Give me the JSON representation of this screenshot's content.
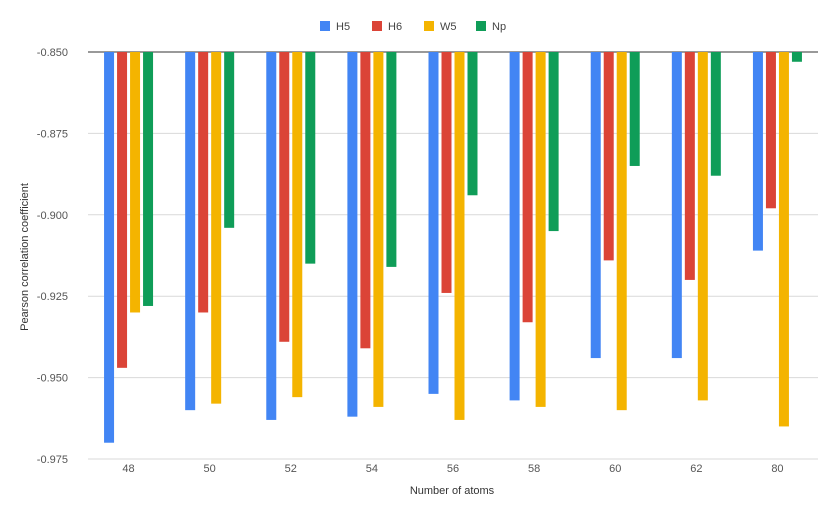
{
  "chart_data": {
    "type": "bar",
    "title": "",
    "xlabel": "Number of atoms",
    "ylabel": "Pearson correlation coefficient",
    "categories": [
      "48",
      "50",
      "52",
      "54",
      "56",
      "58",
      "60",
      "62",
      "80"
    ],
    "ylim": [
      -0.975,
      -0.85
    ],
    "yticks": [
      -0.85,
      -0.875,
      -0.9,
      -0.925,
      -0.95,
      -0.975
    ],
    "ytick_labels": [
      "-0.850",
      "-0.875",
      "-0.900",
      "-0.925",
      "-0.950",
      "-0.975"
    ],
    "grid": true,
    "legend_position": "top-center",
    "series": [
      {
        "name": "H5",
        "color": "#4285F4",
        "values": [
          -0.97,
          -0.96,
          -0.963,
          -0.962,
          -0.955,
          -0.957,
          -0.944,
          -0.944,
          -0.911
        ]
      },
      {
        "name": "H6",
        "color": "#DB4437",
        "values": [
          -0.947,
          -0.93,
          -0.939,
          -0.941,
          -0.924,
          -0.933,
          -0.914,
          -0.92,
          -0.898
        ]
      },
      {
        "name": "W5",
        "color": "#F4B400",
        "values": [
          -0.93,
          -0.958,
          -0.956,
          -0.959,
          -0.963,
          -0.959,
          -0.96,
          -0.957,
          -0.965
        ]
      },
      {
        "name": "Np",
        "color": "#0F9D58",
        "values": [
          -0.928,
          -0.904,
          -0.915,
          -0.916,
          -0.894,
          -0.905,
          -0.885,
          -0.888,
          -0.853
        ]
      }
    ]
  }
}
